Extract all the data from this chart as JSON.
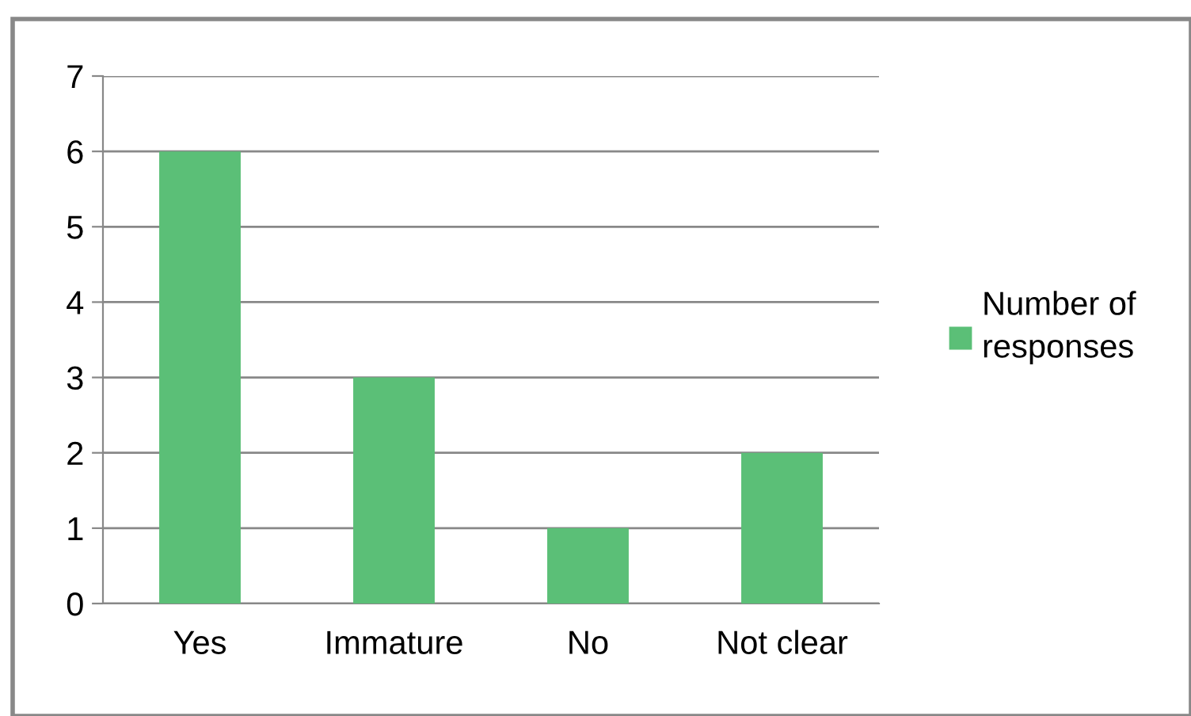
{
  "chart_data": {
    "type": "bar",
    "categories": [
      "Yes",
      "Immature",
      "No",
      "Not clear"
    ],
    "series": [
      {
        "name": "Number of responses",
        "color": "#5bbf77",
        "values": [
          6,
          3,
          1,
          2
        ]
      }
    ],
    "ylim": [
      0,
      7
    ],
    "yticks": [
      0,
      1,
      2,
      3,
      4,
      5,
      6,
      7
    ],
    "grid": "y",
    "legend": "right"
  }
}
